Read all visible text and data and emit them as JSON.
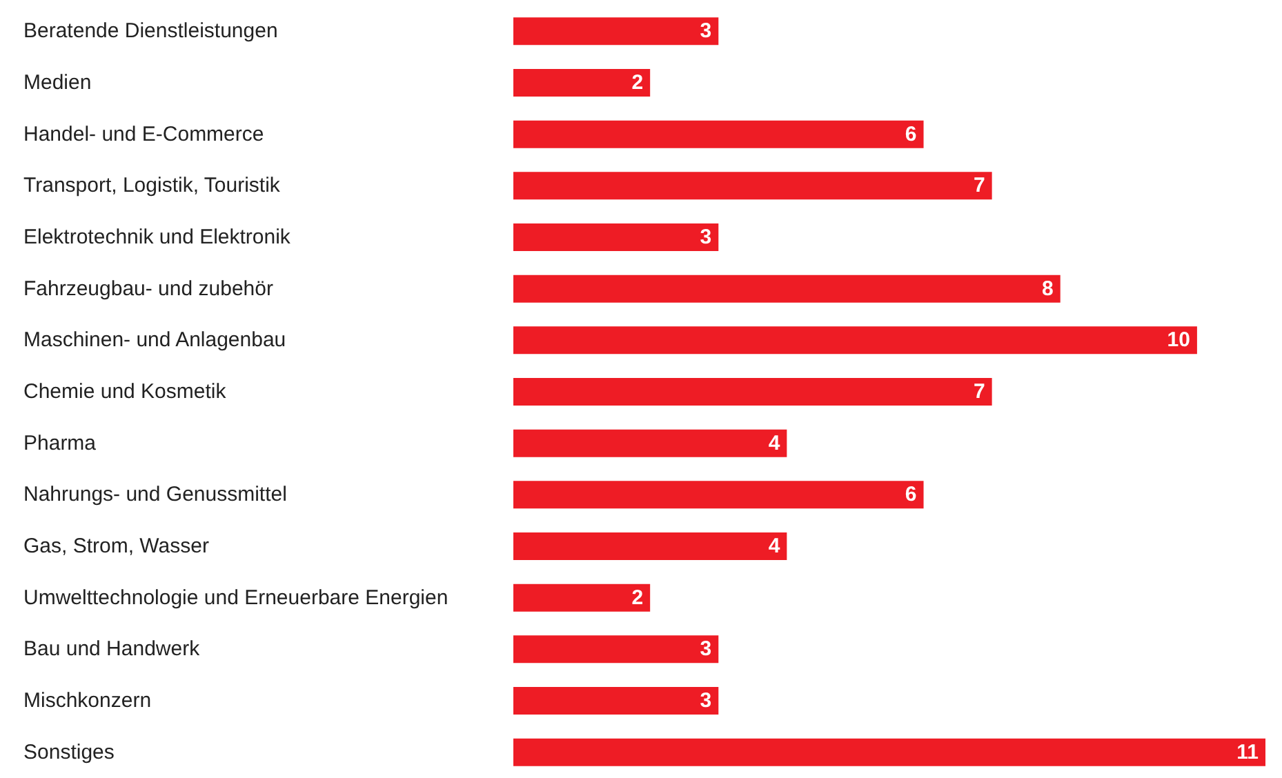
{
  "chart_data": {
    "type": "bar",
    "orientation": "horizontal",
    "categories": [
      "Beratende Dienstleistungen",
      "Medien",
      "Handel- und E-Commerce",
      "Transport, Logistik, Touristik",
      "Elektrotechnik und Elektronik",
      "Fahrzeugbau- und zubehör",
      "Maschinen- und Anlagenbau",
      "Chemie und Kosmetik",
      "Pharma",
      "Nahrungs- und Genussmittel",
      "Gas, Strom, Wasser",
      "Umwelttechnologie und Erneuerbare Energien",
      "Bau und Handwerk",
      "Mischkonzern",
      "Sonstiges"
    ],
    "values": [
      3,
      2,
      6,
      7,
      3,
      8,
      10,
      7,
      4,
      6,
      4,
      2,
      3,
      3,
      11
    ],
    "color": "#ee1c25",
    "data_labels": true
  }
}
